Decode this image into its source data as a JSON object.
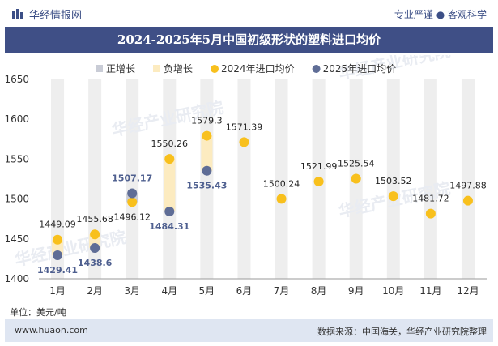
{
  "header": {
    "brand": "华经情报网",
    "tagline": "专业严谨 ● 客观科学"
  },
  "chart_data": {
    "type": "scatter",
    "title": "2024-2025年5月中国初级形状的塑料进口均价",
    "categories": [
      "1月",
      "2月",
      "3月",
      "4月",
      "5月",
      "6月",
      "7月",
      "8月",
      "9月",
      "10月",
      "11月",
      "12月"
    ],
    "series": [
      {
        "name": "正增长",
        "color": "#c9ccd6",
        "values": []
      },
      {
        "name": "负增长",
        "color": "#fcebc0",
        "values": []
      },
      {
        "name": "2024年进口均价",
        "color": "#f8c01d",
        "values": [
          1449.09,
          1455.68,
          1496.12,
          1550.26,
          1579.3,
          1571.39,
          1500.24,
          1521.99,
          1525.54,
          1503.52,
          1481.72,
          1497.88
        ],
        "labels": [
          "1449.09",
          "1455.68",
          "1496.12",
          "1550.26",
          "1579.3",
          "1571.39",
          "1500.24",
          "1521.99",
          "1525.54",
          "1503.52",
          "1481.72",
          "1497.88"
        ]
      },
      {
        "name": "2025年进口均价",
        "color": "#5f6d96",
        "values": [
          1429.41,
          1438.6,
          1507.17,
          1484.31,
          1535.43,
          null,
          null,
          null,
          null,
          null,
          null,
          null
        ],
        "labels": [
          "1429.41",
          "1438.6",
          "1507.17",
          "1484.31",
          "1535.43"
        ]
      }
    ],
    "bars": [
      {
        "month_index": 0,
        "from": 1449.09,
        "to": 1429.41,
        "kind": "negative"
      },
      {
        "month_index": 1,
        "from": 1455.68,
        "to": 1438.6,
        "kind": "negative"
      },
      {
        "month_index": 2,
        "from": 1496.12,
        "to": 1507.17,
        "kind": "positive"
      },
      {
        "month_index": 3,
        "from": 1550.26,
        "to": 1484.31,
        "kind": "negative"
      },
      {
        "month_index": 4,
        "from": 1579.3,
        "to": 1535.43,
        "kind": "negative"
      }
    ],
    "ylim": [
      1400,
      1650
    ],
    "yticks": [
      "1400",
      "1450",
      "1500",
      "1550",
      "1600",
      "1650"
    ],
    "xlabel": "",
    "ylabel": "",
    "legend_position": "top",
    "grid": false,
    "watermark": "华经产业研究院"
  },
  "footer": {
    "unit": "单位：美元/吨",
    "website": "www.huaon.com",
    "source": "数据来源：中国海关，华经产业研究院整理"
  }
}
